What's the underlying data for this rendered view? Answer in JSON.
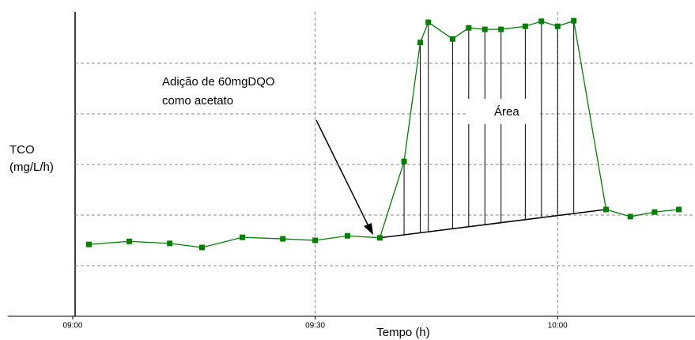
{
  "chart_data": {
    "type": "line",
    "ylabel": [
      "TCO",
      "(mg/L/h)"
    ],
    "xlabel": "Tempo (h)",
    "annotation": [
      "Adição de 60mgDQO",
      "como  acetato"
    ],
    "area_label": "Área",
    "x": [
      "09:02",
      "09:07",
      "09:12",
      "09:16",
      "09:21",
      "09:26",
      "09:30",
      "09:34",
      "09:38",
      "09:41",
      "09:43",
      "09:44",
      "09:47",
      "09:49",
      "09:51",
      "09:53",
      "09:56",
      "09:58",
      "10:00",
      "10:02",
      "10:06",
      "10:09",
      "10:12",
      "10:15"
    ],
    "series": [
      {
        "color": "#008000",
        "values": [
          1.42,
          1.48,
          1.44,
          1.36,
          1.56,
          1.53,
          1.5,
          1.59,
          1.55,
          3.06,
          5.41,
          5.81,
          5.48,
          5.7,
          5.67,
          5.67,
          5.73,
          5.83,
          5.73,
          5.84,
          2.11,
          1.97,
          2.06,
          2.11
        ]
      }
    ],
    "xlim": [
      "08:51",
      "10:17"
    ],
    "xticks": [
      "09:00",
      "09:30",
      "10:00"
    ],
    "ylim": [
      0,
      6.25
    ],
    "yticks": [
      1,
      2,
      3,
      4,
      5
    ],
    "grid": true,
    "baseline_color": "#000000"
  }
}
